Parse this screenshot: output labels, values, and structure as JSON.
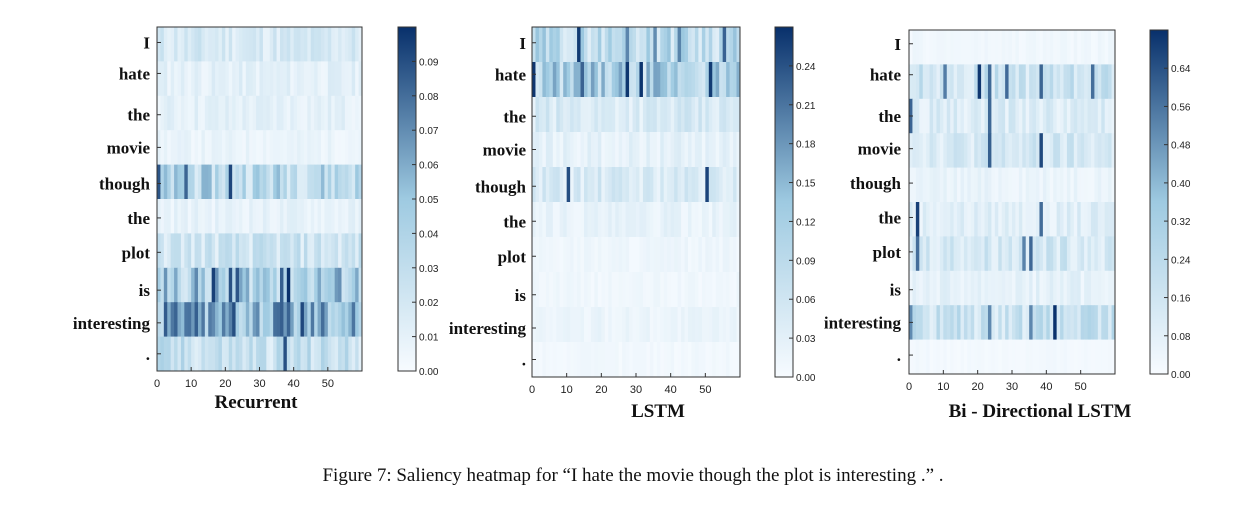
{
  "caption": "Figure 7: Saliency heatmap for “I hate the movie though the plot is interesting .” .",
  "colors": {
    "low": "#f7fbff",
    "mid": "#9ecae1",
    "high": "#08306b"
  },
  "chart_data": [
    {
      "type": "heatmap",
      "title": "Recurrent",
      "rows": [
        "I",
        "hate",
        "the",
        "movie",
        "though",
        "the",
        "plot",
        "is",
        "interesting",
        "."
      ],
      "x_ticks": [
        0,
        10,
        20,
        30,
        40,
        50
      ],
      "x_range": [
        0,
        60
      ],
      "colorbar_ticks": [
        "0.00",
        "0.01",
        "0.02",
        "0.03",
        "0.04",
        "0.05",
        "0.06",
        "0.07",
        "0.08",
        "0.09"
      ],
      "vmin": 0,
      "vmax": 0.1,
      "row_intensity": [
        0.02,
        0.012,
        0.012,
        0.008,
        0.04,
        0.01,
        0.025,
        0.05,
        0.06,
        0.03
      ],
      "hot_columns": [
        [],
        [],
        [],
        [],
        [
          0,
          8,
          21
        ],
        [],
        [],
        [
          16,
          21,
          23,
          36,
          38
        ],
        [
          2,
          9,
          22,
          36,
          42
        ],
        [
          37
        ]
      ],
      "seed": 11
    },
    {
      "type": "heatmap",
      "title": "LSTM",
      "rows": [
        "I",
        "hate",
        "the",
        "movie",
        "though",
        "the",
        "plot",
        "is",
        "interesting",
        "."
      ],
      "x_ticks": [
        0,
        10,
        20,
        30,
        40,
        50
      ],
      "x_range": [
        0,
        60
      ],
      "colorbar_ticks": [
        "0.00",
        "0.03",
        "0.06",
        "0.09",
        "0.12",
        "0.15",
        "0.18",
        "0.21",
        "0.24"
      ],
      "vmin": 0,
      "vmax": 0.27,
      "row_intensity": [
        0.1,
        0.12,
        0.05,
        0.03,
        0.05,
        0.025,
        0.015,
        0.012,
        0.02,
        0.01
      ],
      "hot_columns": [
        [
          13,
          27,
          35,
          42,
          55
        ],
        [
          0,
          14,
          27,
          31,
          51
        ],
        [],
        [],
        [
          10,
          50
        ],
        [],
        [],
        [],
        [],
        []
      ],
      "seed": 29
    },
    {
      "type": "heatmap",
      "title": "Bi - Directional LSTM",
      "rows": [
        "I",
        "hate",
        "the",
        "movie",
        "though",
        "the",
        "plot",
        "is",
        "interesting",
        "."
      ],
      "x_ticks": [
        0,
        10,
        20,
        30,
        40,
        50
      ],
      "x_range": [
        0,
        60
      ],
      "colorbar_ticks": [
        "0.00",
        "0.08",
        "0.16",
        "0.24",
        "0.32",
        "0.40",
        "0.48",
        "0.56",
        "0.64"
      ],
      "vmin": 0,
      "vmax": 0.72,
      "row_intensity": [
        0.03,
        0.2,
        0.12,
        0.15,
        0.06,
        0.1,
        0.16,
        0.08,
        0.2,
        0.02
      ],
      "hot_columns": [
        [],
        [
          10,
          20,
          23,
          28,
          38,
          53
        ],
        [
          0,
          23
        ],
        [
          23,
          38
        ],
        [],
        [
          2,
          38
        ],
        [
          2,
          33,
          35
        ],
        [],
        [
          0,
          23,
          35,
          42
        ],
        []
      ],
      "seed": 47
    }
  ]
}
